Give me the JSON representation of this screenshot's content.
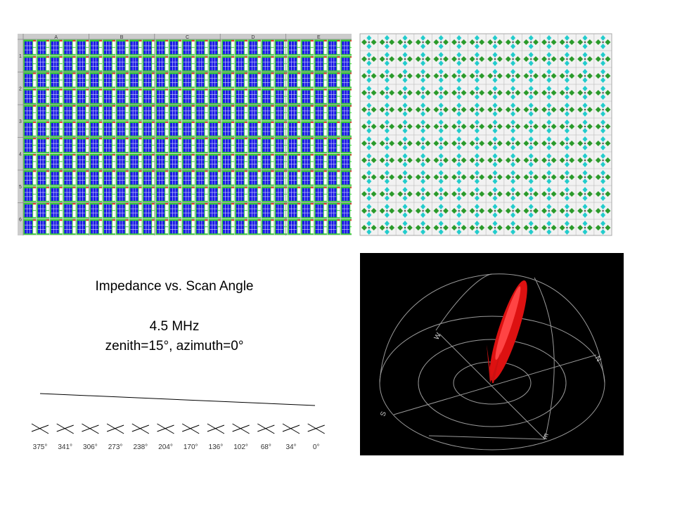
{
  "slide": {
    "title": "Impedance vs. Scan Angle",
    "frequency": "4.5 MHz",
    "angles": "zenith=15°, azimuth=0°",
    "scan_labels": [
      "375°",
      "341°",
      "306°",
      "273°",
      "238°",
      "204°",
      "170°",
      "136°",
      "102°",
      "68°",
      "34°",
      "0°"
    ]
  },
  "array_grid": {
    "columns": [
      "A",
      "B",
      "C",
      "D",
      "E"
    ],
    "rows": [
      "1",
      "2",
      "3",
      "4",
      "5",
      "6"
    ]
  },
  "pattern_plot": {
    "directions": [
      "W",
      "N",
      "S",
      "E"
    ]
  }
}
